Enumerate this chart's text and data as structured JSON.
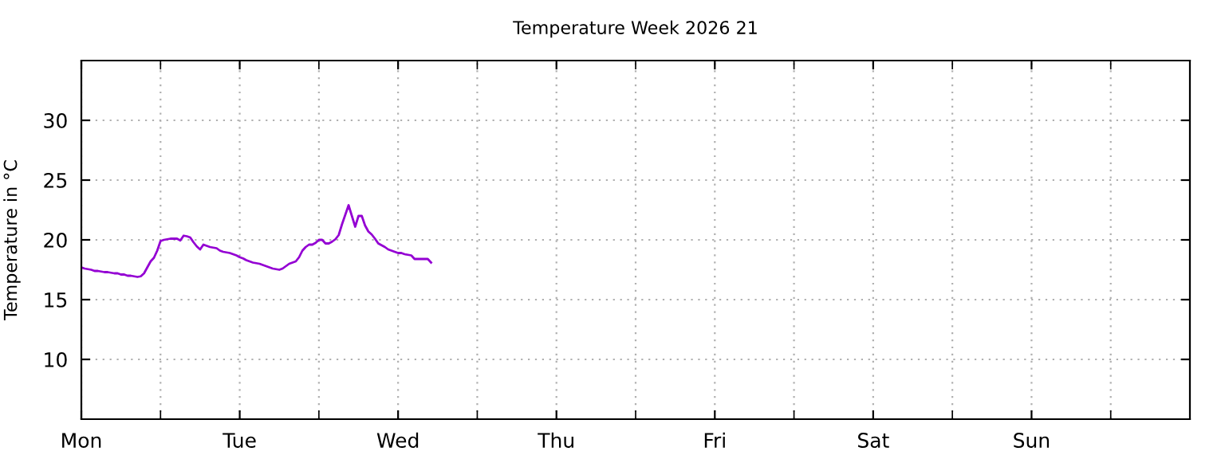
{
  "chart_data": {
    "type": "line",
    "title": "Temperature Week 2026 21",
    "ylabel": "Temperature in °C",
    "ylim": [
      5,
      35
    ],
    "yticks": [
      10,
      15,
      20,
      25,
      30
    ],
    "grid": true,
    "marker": "none",
    "line_style": "solid",
    "categories": [
      "Mon",
      null,
      null,
      null,
      null,
      null,
      null,
      null,
      null,
      null,
      null,
      null,
      null,
      null,
      null,
      null,
      null,
      null,
      null,
      null,
      null,
      null,
      null,
      null,
      null,
      null,
      null,
      null,
      null,
      null,
      null,
      null,
      null,
      null,
      null,
      null,
      null,
      null,
      null,
      null,
      null,
      null,
      null,
      null,
      null,
      null,
      null,
      null,
      "Tue",
      null,
      null,
      null,
      null,
      null,
      null,
      null,
      null,
      null,
      null,
      null,
      null,
      null,
      null,
      null,
      null,
      null,
      null,
      null,
      null,
      null,
      null,
      null,
      null,
      null,
      null,
      null,
      null,
      null,
      null,
      null,
      null,
      null,
      null,
      null,
      null,
      null,
      null,
      null,
      null,
      null,
      null,
      null,
      null,
      null,
      null,
      null,
      "Wed",
      null,
      null,
      null,
      null,
      null,
      null,
      null,
      null,
      null,
      null,
      null,
      null,
      null,
      null,
      null,
      null,
      null,
      null,
      null,
      null,
      null,
      null,
      null,
      null,
      null,
      null,
      null,
      null,
      null,
      null,
      null,
      null,
      null,
      null,
      null,
      null,
      null,
      null,
      null,
      null,
      null,
      null,
      null,
      null,
      null,
      null,
      null,
      "Thu",
      null,
      null,
      null,
      null,
      null,
      null,
      null,
      null,
      null,
      null,
      null,
      null,
      null,
      null,
      null,
      null,
      null,
      null,
      null,
      null,
      null,
      null,
      null,
      null,
      null,
      null,
      null,
      null,
      null,
      null,
      null,
      null,
      null,
      null,
      null,
      null,
      null,
      null,
      null,
      null,
      null,
      null,
      null,
      null,
      null,
      null,
      null,
      "Fri",
      null,
      null,
      null,
      null,
      null,
      null,
      null,
      null,
      null,
      null,
      null,
      null,
      null,
      null,
      null,
      null,
      null,
      null,
      null,
      null,
      null,
      null,
      null,
      null,
      null,
      null,
      null,
      null,
      null,
      null,
      null,
      null,
      null,
      null,
      null,
      null,
      null,
      null,
      null,
      null,
      null,
      null,
      null,
      null,
      null,
      null,
      null,
      "Sat",
      null,
      null,
      null,
      null,
      null,
      null,
      null,
      null,
      null,
      null,
      null,
      null,
      null,
      null,
      null,
      null,
      null,
      null,
      null,
      null,
      null,
      null,
      null,
      null,
      null,
      null,
      null,
      null,
      null,
      null,
      null,
      null,
      null,
      null,
      null,
      null,
      null,
      null,
      null,
      null,
      null,
      null,
      null,
      null,
      null,
      null,
      null,
      "Sun",
      null,
      null,
      null,
      null,
      null,
      null,
      null,
      null,
      null,
      null,
      null,
      null,
      null,
      null,
      null,
      null,
      null,
      null,
      null,
      null,
      null,
      null,
      null,
      null,
      null,
      null,
      null,
      null,
      null,
      null,
      null,
      null,
      null,
      null,
      null,
      null,
      null,
      null,
      null,
      null,
      null,
      null,
      null,
      null,
      null,
      null,
      null,
      null
    ],
    "series": [
      {
        "color": "#9400d3",
        "values": [
          17.7,
          17.6,
          17.55,
          17.5,
          17.4,
          17.4,
          17.35,
          17.3,
          17.3,
          17.25,
          17.2,
          17.2,
          17.1,
          17.1,
          17.0,
          17.0,
          16.95,
          16.9,
          16.95,
          17.2,
          17.7,
          18.2,
          18.5,
          19.1,
          19.9,
          20.0,
          20.05,
          20.1,
          20.1,
          20.1,
          19.95,
          20.35,
          20.3,
          20.2,
          19.8,
          19.45,
          19.2,
          19.6,
          19.5,
          19.4,
          19.35,
          19.3,
          19.1,
          19.0,
          18.95,
          18.9,
          18.8,
          18.7,
          18.55,
          18.45,
          18.3,
          18.2,
          18.1,
          18.05,
          18.0,
          17.9,
          17.8,
          17.7,
          17.6,
          17.55,
          17.5,
          17.6,
          17.8,
          18.0,
          18.1,
          18.2,
          18.55,
          19.1,
          19.4,
          19.6,
          19.6,
          19.75,
          20.0,
          20.0,
          19.7,
          19.7,
          19.85,
          20.05,
          20.4,
          21.3,
          22.1,
          22.9,
          22.0,
          21.1,
          22.0,
          22.0,
          21.2,
          20.7,
          20.45,
          20.1,
          19.7,
          19.55,
          19.4,
          19.2,
          19.1,
          19.0,
          18.9,
          18.9,
          18.8,
          18.75,
          18.7,
          18.4,
          18.4,
          18.4,
          18.4,
          18.4,
          18.1,
          null,
          null,
          null,
          null,
          null,
          null,
          null,
          null,
          null,
          null,
          null,
          null,
          null,
          null,
          null,
          null,
          null,
          null,
          null,
          null,
          null,
          null,
          null,
          null,
          null,
          null,
          null,
          null,
          null,
          null,
          null,
          null,
          null,
          null,
          null,
          null,
          null,
          null,
          null,
          null,
          null,
          null,
          null,
          null,
          null,
          null,
          null,
          null,
          null,
          null,
          null,
          null,
          null,
          null,
          null,
          null,
          null,
          null,
          null,
          null,
          null,
          null,
          null,
          null,
          null,
          null,
          null,
          null,
          null,
          null,
          null,
          null,
          null,
          null,
          null,
          null,
          null,
          null,
          null,
          null,
          null,
          null,
          null,
          null,
          null,
          null,
          null,
          null,
          null,
          null,
          null,
          null,
          null,
          null,
          null,
          null,
          null,
          null,
          null,
          null,
          null,
          null,
          null,
          null,
          null,
          null,
          null,
          null,
          null,
          null,
          null,
          null,
          null,
          null,
          null,
          null,
          null,
          null,
          null,
          null,
          null,
          null,
          null,
          null,
          null,
          null,
          null,
          null,
          null,
          null,
          null,
          null,
          null,
          null,
          null,
          null,
          null,
          null,
          null,
          null,
          null,
          null,
          null,
          null,
          null,
          null,
          null,
          null,
          null,
          null,
          null,
          null,
          null,
          null,
          null,
          null,
          null,
          null,
          null,
          null,
          null,
          null,
          null,
          null,
          null,
          null,
          null,
          null,
          null,
          null,
          null,
          null,
          null,
          null,
          null,
          null,
          null,
          null,
          null,
          null,
          null,
          null,
          null,
          null,
          null,
          null,
          null,
          null,
          null,
          null,
          null,
          null,
          null,
          null,
          null,
          null,
          null,
          null,
          null,
          null,
          null,
          null,
          null,
          null,
          null,
          null,
          null,
          null,
          null,
          null,
          null,
          null,
          null,
          null,
          null,
          null,
          null,
          null,
          null,
          null,
          null,
          null,
          null,
          null,
          null,
          null,
          null,
          null,
          null,
          null
        ]
      }
    ]
  }
}
